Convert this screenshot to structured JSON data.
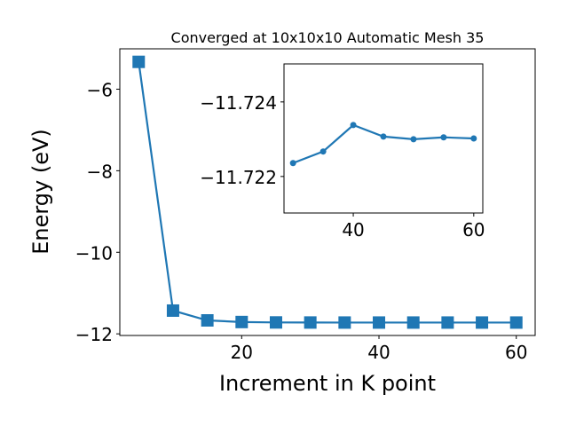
{
  "chart_data": [
    {
      "type": "line",
      "title": "Converged at 10x10x10 Automatic Mesh 35",
      "x_label": "Increment in K point",
      "y_label": "Energy (eV)",
      "x": [
        5,
        10,
        15,
        20,
        25,
        30,
        35,
        40,
        45,
        50,
        55,
        60
      ],
      "series": [
        {
          "color": "#1f77b4",
          "marker": "square",
          "values": [
            -5.33,
            -11.43,
            -11.67,
            -11.71,
            -11.72,
            -11.722,
            -11.723,
            -11.723,
            -11.723,
            -11.723,
            -11.723,
            -11.723
          ]
        }
      ],
      "xlim": [
        2.25,
        62.75
      ],
      "ylim": [
        -12.04,
        -5.01
      ],
      "xticks": [
        20,
        40,
        60
      ],
      "yticks": [
        {
          "value": -12,
          "label": "−12"
        },
        {
          "value": -10,
          "label": "−10"
        },
        {
          "value": -8,
          "label": "−8"
        },
        {
          "value": -6,
          "label": "−6"
        }
      ]
    },
    {
      "type": "line",
      "x": [
        30,
        35,
        40,
        45,
        50,
        55,
        60
      ],
      "series": [
        {
          "color": "#1f77b4",
          "marker": "circle",
          "values": [
            -11.72236,
            -11.72267,
            -11.72338,
            -11.72307,
            -11.723,
            -11.72305,
            -11.72302
          ]
        }
      ],
      "xlim": [
        28.5,
        61.5
      ],
      "ylim": [
        -11.72102,
        -11.72502
      ],
      "xticks": [
        40,
        60
      ],
      "yticks": [
        {
          "value": -11.722,
          "label": "−11.722"
        },
        {
          "value": -11.724,
          "label": "−11.724"
        }
      ]
    }
  ]
}
